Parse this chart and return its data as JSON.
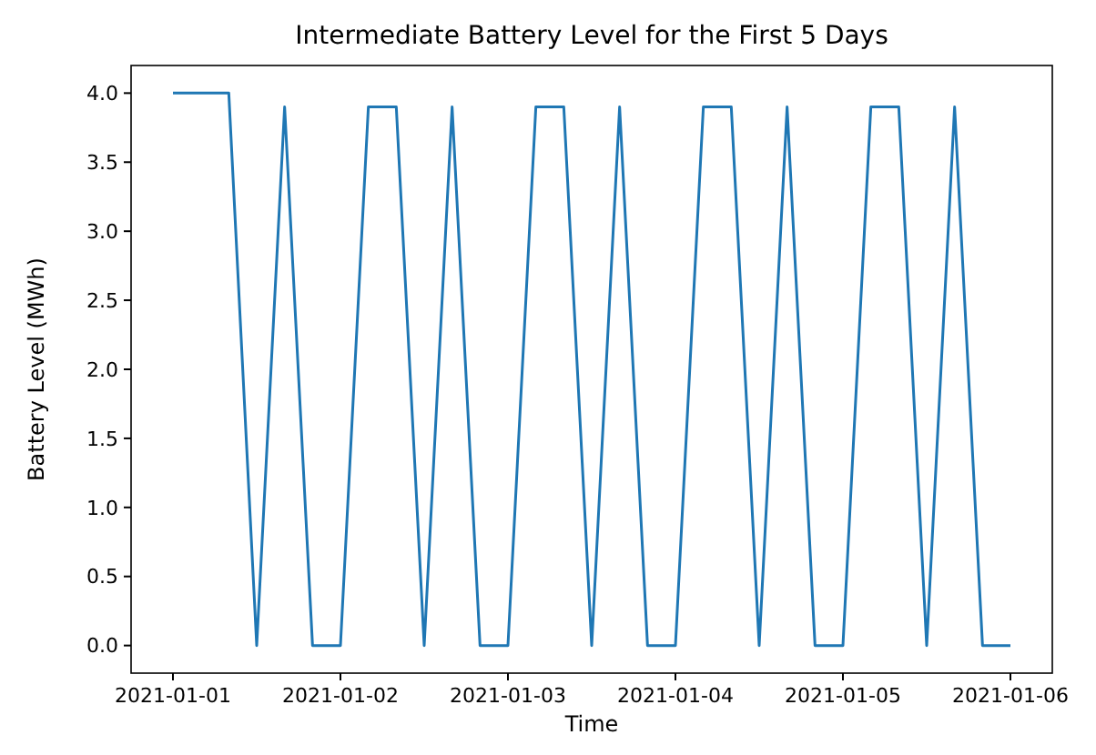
{
  "chart_data": {
    "type": "line",
    "title": "Intermediate Battery Level for the First 5 Days",
    "xlabel": "Time",
    "ylabel": "Battery Level (MWh)",
    "x": [
      "2021-01-01T00:00",
      "2021-01-01T04:00",
      "2021-01-01T08:00",
      "2021-01-01T12:00",
      "2021-01-01T16:00",
      "2021-01-01T20:00",
      "2021-01-02T00:00",
      "2021-01-02T04:00",
      "2021-01-02T08:00",
      "2021-01-02T12:00",
      "2021-01-02T16:00",
      "2021-01-02T20:00",
      "2021-01-03T00:00",
      "2021-01-03T04:00",
      "2021-01-03T08:00",
      "2021-01-03T12:00",
      "2021-01-03T16:00",
      "2021-01-03T20:00",
      "2021-01-04T00:00",
      "2021-01-04T04:00",
      "2021-01-04T08:00",
      "2021-01-04T12:00",
      "2021-01-04T16:00",
      "2021-01-04T20:00",
      "2021-01-05T00:00",
      "2021-01-05T04:00",
      "2021-01-05T08:00",
      "2021-01-05T12:00",
      "2021-01-05T16:00",
      "2021-01-05T20:00",
      "2021-01-06T00:00"
    ],
    "series": [
      {
        "color": "#1f77b4",
        "values": [
          4.0,
          4.0,
          4.0,
          0,
          3.9,
          0,
          0,
          3.9,
          3.9,
          0,
          3.9,
          0,
          0,
          3.9,
          3.9,
          0,
          3.9,
          0,
          0,
          3.9,
          3.9,
          0,
          3.9,
          0,
          0,
          3.9,
          3.9,
          0,
          3.9,
          0,
          0
        ]
      }
    ],
    "xlim": [
      "2020-12-31T18:00",
      "2021-01-06T06:00"
    ],
    "xticks": [
      "2021-01-01",
      "2021-01-02",
      "2021-01-03",
      "2021-01-04",
      "2021-01-05",
      "2021-01-06"
    ],
    "ylim": [
      -0.2,
      4.2
    ],
    "yticks": [
      {
        "value": 0,
        "label": "0.0"
      },
      {
        "value": 0.5,
        "label": "0.5"
      },
      {
        "value": 1,
        "label": "1.0"
      },
      {
        "value": 1.5,
        "label": "1.5"
      },
      {
        "value": 2,
        "label": "2.0"
      },
      {
        "value": 2.5,
        "label": "2.5"
      },
      {
        "value": 3,
        "label": "3.0"
      },
      {
        "value": 3.5,
        "label": "3.5"
      },
      {
        "value": 4,
        "label": "4.0"
      }
    ],
    "grid": false,
    "line_style": "solid"
  }
}
